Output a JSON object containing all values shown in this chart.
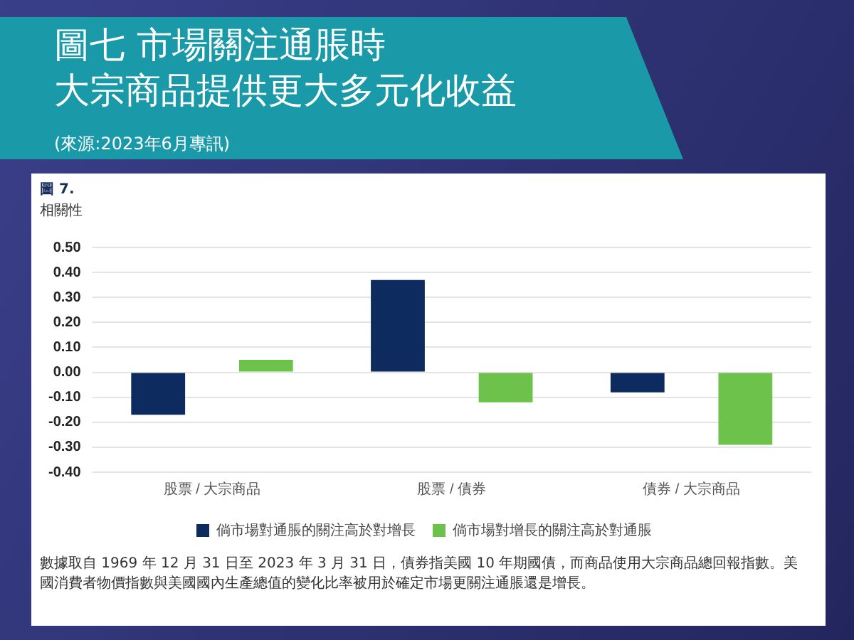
{
  "chart_data": {
    "type": "bar",
    "title": "圖七 市場關注通脹時",
    "subtitle": "大宗商品提供更大多元化收益",
    "ylabel": "相關性",
    "annotations": [
      "(來源:2023年6月專訊)",
      "圖 7.",
      "數據取自 1969 年 12 月 31 日至 2023 年 3 月 31 日，債券指美國 10 年期國債，而商品使用大宗商品總回報指數。美國消費者物價指數與美國國內生產總值的變化比率被用於確定市場更關注通脹還是增長。"
    ],
    "categories": [
      "股票 / 大宗商品",
      "股票 / 債券",
      "債券 / 大宗商品"
    ],
    "series": [
      {
        "name": "倘市場對通脹的關注高於對增長",
        "color": "#0d2b5e",
        "values": [
          -0.17,
          0.37,
          -0.08
        ]
      },
      {
        "name": "倘市場對增長的關注高於對通脹",
        "color": "#6cc24a",
        "values": [
          0.05,
          -0.12,
          -0.29
        ]
      }
    ],
    "ylim": [
      -0.4,
      0.5
    ],
    "yticks": [
      {
        "value": -0.4,
        "label": "-0.40"
      },
      {
        "value": -0.3,
        "label": "-0.30"
      },
      {
        "value": -0.2,
        "label": "-0.20"
      },
      {
        "value": -0.1,
        "label": "-0.10"
      },
      {
        "value": 0,
        "label": "0.00"
      },
      {
        "value": 0.1,
        "label": "0.10"
      },
      {
        "value": 0.2,
        "label": "0.20"
      },
      {
        "value": 0.3,
        "label": "0.30"
      },
      {
        "value": 0.4,
        "label": "0.40"
      },
      {
        "value": 0.5,
        "label": "0.50"
      }
    ],
    "grid": "y",
    "legend": "bottom"
  }
}
